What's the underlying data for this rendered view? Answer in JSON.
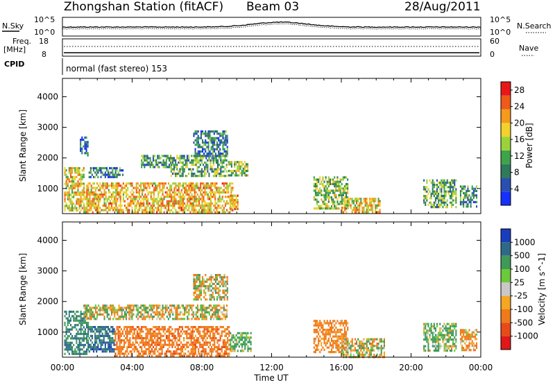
{
  "header": {
    "station": "Zhongshan Station (fitACF)",
    "beam": "Beam 03",
    "date": "28/Aug/2011"
  },
  "status_panels": {
    "nsky_label": "N.Sky",
    "nsearch_label": "N.Search",
    "noise_tick_top": "10^5",
    "noise_tick_bottom": "10^0",
    "freq_label_1": "Freq.",
    "freq_label_2": "[MHz]",
    "freq_tick_top": "18",
    "freq_tick_bottom": "8",
    "nave_label": "Nave",
    "nave_tick_top": "60",
    "nave_tick_bottom": "0",
    "cpid_label": "CPID",
    "cpid_text": "normal (fast stereo) 153"
  },
  "chart_data": [
    {
      "type": "heatmap",
      "title": "",
      "xlabel": "Time UT",
      "ylabel": "Slant Range [km]",
      "x_ticks": [
        "00:00",
        "04:00",
        "08:00",
        "12:00",
        "16:00",
        "20:00",
        "00:00"
      ],
      "xlim_hours": [
        0,
        24
      ],
      "y_ticks": [
        1000,
        2000,
        3000,
        4000
      ],
      "ylim_km": [
        180,
        4600
      ],
      "colorbar": {
        "label": "Power [dB]",
        "ticks": [
          4,
          8,
          12,
          16,
          20,
          24,
          28
        ],
        "range": [
          0,
          30
        ],
        "colors": [
          "#1530ff",
          "#2a4fb0",
          "#2e7a5a",
          "#3fa34a",
          "#9bd23c",
          "#f2d22a",
          "#f59a1c",
          "#f05a18",
          "#e81818"
        ]
      },
      "echo_regions": [
        {
          "t0": 0.1,
          "t1": 1.2,
          "r0": 300,
          "r1": 1700,
          "value": 18
        },
        {
          "t0": 1.0,
          "t1": 1.5,
          "r0": 2100,
          "r1": 2700,
          "value": 6
        },
        {
          "t0": 1.2,
          "t1": 9.8,
          "r0": 250,
          "r1": 1200,
          "value": 20
        },
        {
          "t0": 1.5,
          "t1": 3.5,
          "r0": 1400,
          "r1": 1700,
          "value": 8
        },
        {
          "t0": 4.5,
          "t1": 6.2,
          "r0": 1700,
          "r1": 2100,
          "value": 10
        },
        {
          "t0": 6.2,
          "t1": 9.4,
          "r0": 1400,
          "r1": 2100,
          "value": 12
        },
        {
          "t0": 7.5,
          "t1": 9.5,
          "r0": 2100,
          "r1": 2900,
          "value": 8
        },
        {
          "t0": 9.5,
          "t1": 10.6,
          "r0": 1400,
          "r1": 1900,
          "value": 14
        },
        {
          "t0": 9.6,
          "t1": 10.1,
          "r0": 350,
          "r1": 800,
          "value": 22
        },
        {
          "t0": 14.4,
          "t1": 16.4,
          "r0": 350,
          "r1": 1400,
          "value": 14
        },
        {
          "t0": 16.0,
          "t1": 18.2,
          "r0": 200,
          "r1": 700,
          "value": 18
        },
        {
          "t0": 20.7,
          "t1": 22.6,
          "r0": 400,
          "r1": 1300,
          "value": 12
        },
        {
          "t0": 22.8,
          "t1": 23.8,
          "r0": 400,
          "r1": 1100,
          "value": 10
        }
      ]
    },
    {
      "type": "heatmap",
      "title": "",
      "xlabel": "Time UT",
      "ylabel": "Slant Range [km]",
      "x_ticks": [
        "00:00",
        "04:00",
        "08:00",
        "12:00",
        "16:00",
        "20:00",
        "00:00"
      ],
      "xlim_hours": [
        0,
        24
      ],
      "y_ticks": [
        1000,
        2000,
        3000,
        4000
      ],
      "ylim_km": [
        180,
        4600
      ],
      "colorbar": {
        "label": "Velocity [m s^-1]",
        "ticks": [
          "1000",
          "500",
          "100",
          "25",
          "-25",
          "-100",
          "-500",
          "-1000"
        ],
        "colors": [
          "#1a3dbe",
          "#2e6a88",
          "#3f9a5a",
          "#6cc93a",
          "#c8c8c8",
          "#f5a623",
          "#f07a1a",
          "#e84a1a",
          "#e01818"
        ]
      },
      "echo_regions": [
        {
          "t0": 0.1,
          "t1": 1.5,
          "r0": 300,
          "r1": 1700,
          "value": 300
        },
        {
          "t0": 1.5,
          "t1": 3.0,
          "r0": 400,
          "r1": 1200,
          "value": 500
        },
        {
          "t0": 3.0,
          "t1": 9.6,
          "r0": 250,
          "r1": 1200,
          "value": -200
        },
        {
          "t0": 1.2,
          "t1": 9.4,
          "r0": 1400,
          "r1": 1900,
          "value": 0
        },
        {
          "t0": 7.5,
          "t1": 9.5,
          "r0": 2100,
          "r1": 2900,
          "value": 0
        },
        {
          "t0": 9.6,
          "t1": 10.8,
          "r0": 400,
          "r1": 1000,
          "value": 100
        },
        {
          "t0": 14.4,
          "t1": 16.4,
          "r0": 350,
          "r1": 1400,
          "value": -150
        },
        {
          "t0": 16.0,
          "t1": 18.5,
          "r0": 200,
          "r1": 800,
          "value": 0
        },
        {
          "t0": 20.7,
          "t1": 22.6,
          "r0": 400,
          "r1": 1300,
          "value": 80
        },
        {
          "t0": 22.8,
          "t1": 23.8,
          "r0": 400,
          "r1": 1100,
          "value": -100
        }
      ]
    }
  ]
}
